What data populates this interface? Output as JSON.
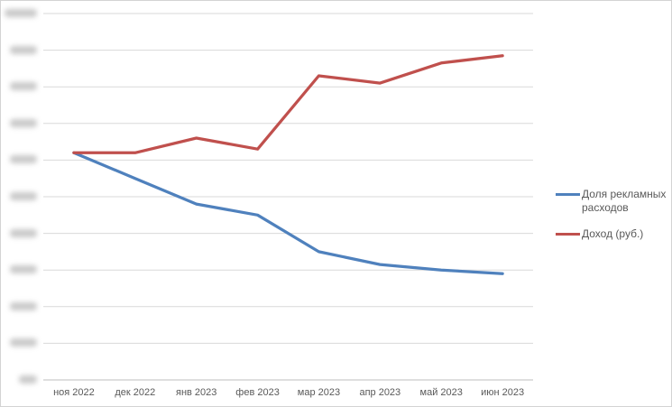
{
  "window": {
    "background": "#ffffff",
    "border_color": "#d3d3d3"
  },
  "chart_data": {
    "type": "line",
    "title": "",
    "xlabel": "",
    "ylabel": "",
    "categories": [
      "ноя 2022",
      "дек 2022",
      "янв 2023",
      "фев 2023",
      "мар 2023",
      "апр 2023",
      "май 2023",
      "июн 2023"
    ],
    "series": [
      {
        "name": "Доля рекламных расходов",
        "color": "#4F81BD",
        "values": [
          6.2,
          5.5,
          4.8,
          4.5,
          3.5,
          3.15,
          3.0,
          2.9
        ]
      },
      {
        "name": "Доход (руб.)",
        "color": "#C0504D",
        "values": [
          6.2,
          6.2,
          6.6,
          6.3,
          8.3,
          8.1,
          8.65,
          8.85
        ]
      }
    ],
    "ylim": [
      0,
      10
    ],
    "y_gridline_count": 11,
    "y_axis_labels": "blurred-illegible",
    "grid": true,
    "legend_position": "right"
  },
  "axis_style": {
    "gridline_color": "#d9d9d9",
    "axis_line_color": "#bfbfbf",
    "label_color": "#595959"
  }
}
